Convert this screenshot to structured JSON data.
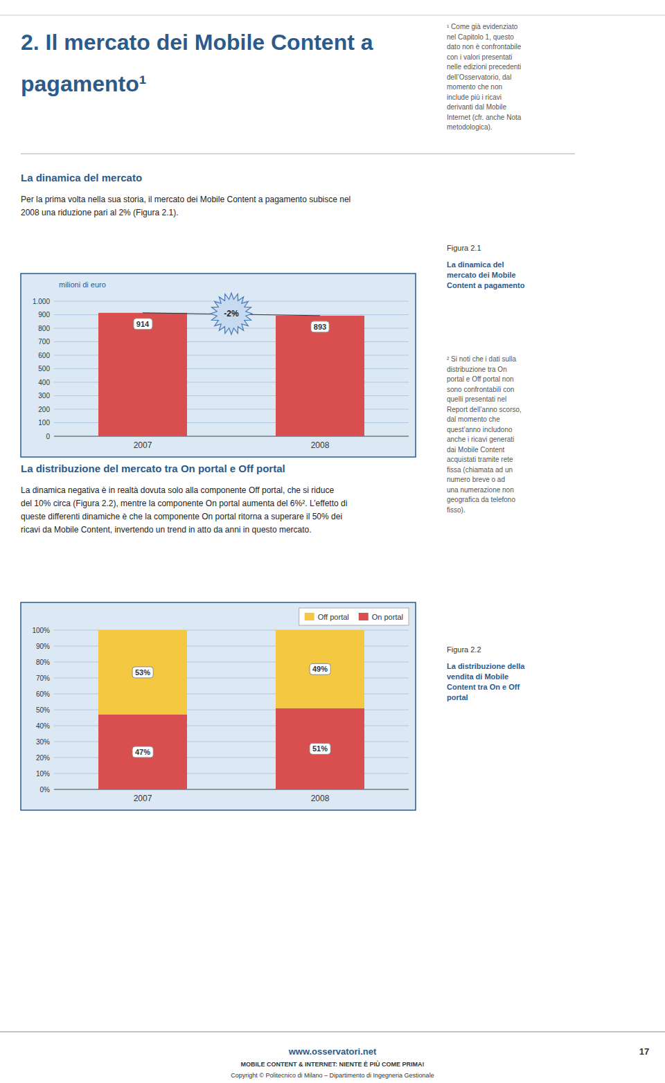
{
  "page": {
    "header": [
      "2. Il mercato dei Mobile Content a",
      "pagamento¹"
    ],
    "footnotes": [
      "¹ Come già evidenziato\nnel Capitolo 1, questo\ndato non è confrontabile\ncon i valori presentati\nnelle edizioni precedenti\ndell’Osservatorio, dal\nmomento che non\ninclude più i ricavi\nderivanti dal Mobile\nInternet (cfr. anche Nota\nmetodologica).",
      "² Si noti che i dati sulla\ndistribuzione tra On\nportal e Off portal non\nsono confrontabili con\nquelli presentati nel\nReport dell’anno scorso,\ndal momento che\nquest’anno includono\nanche i ricavi generati\ndai Mobile Content\nacquistati tramite rete\nfissa (chiamata ad un\nnumero breve o ad\nuna numerazione non\ngeografica da telefono\nfisso)."
    ],
    "sections": [
      {
        "title": "La dinamica del mercato",
        "body": "Per la prima volta nella sua storia, il mercato dei Mobile Content a pagamento subisce nel\n2008 una riduzione pari al 2% (Figura 2.1)."
      },
      {
        "title": "La distribuzione del mercato tra On portal e Off portal",
        "body": "La dinamica negativa è in realtà dovuta solo alla componente Off portal, che si riduce\ndel 10% circa (Figura 2.2), mentre la componente On portal aumenta del 6%². L’effetto di\nqueste differenti dinamiche è che la componente On portal ritorna a superare il 50% dei\nricavi da Mobile Content, invertendo un trend in atto da anni in questo mercato."
      }
    ],
    "footer": {
      "website": "www.osservatori.net",
      "line1": "MOBILE CONTENT & INTERNET: NIENTE È PIÙ COME PRIMA!",
      "line2": "Copyright © Politecnico di Milano – Dipartimento di Ingegneria Gestionale",
      "page": "17"
    }
  },
  "chart_data": [
    {
      "type": "bar",
      "title": "Figura 2.1",
      "subtitle": "La dinamica del\nmercato dei Mobile\nContent a pagamento",
      "ylabel": "milioni di euro",
      "categories": [
        "2007",
        "2008"
      ],
      "values": [
        914,
        893
      ],
      "color": "#d94f4f",
      "ylim": [
        0,
        1000
      ],
      "yticks": [
        0,
        100,
        200,
        300,
        400,
        500,
        600,
        700,
        800,
        900,
        {
          "value": 1000,
          "label": "1.000"
        }
      ],
      "grid": true,
      "data_labels": true,
      "annotations": [
        "-2%"
      ]
    },
    {
      "type": "bar",
      "title": "Figura 2.2",
      "subtitle": "La distribuzione della\nvendita di Mobile\nContent tra On e Off\nportal",
      "categories": [
        "2007",
        "2008"
      ],
      "series": [
        {
          "name": "On portal",
          "color": "#d94f4f",
          "values": [
            47,
            51
          ],
          "value_labels": [
            "47%",
            "51%"
          ]
        },
        {
          "name": "Off portal",
          "color": "#f5c842",
          "values": [
            53,
            49
          ],
          "value_labels": [
            "53%",
            "49%"
          ]
        }
      ],
      "stacked": true,
      "ylim": [
        0,
        100
      ],
      "yticks": [
        {
          "value": 0,
          "label": "0%"
        },
        {
          "value": 10,
          "label": "10%"
        },
        {
          "value": 20,
          "label": "20%"
        },
        {
          "value": 30,
          "label": "30%"
        },
        {
          "value": 40,
          "label": "40%"
        },
        {
          "value": 50,
          "label": "50%"
        },
        {
          "value": 60,
          "label": "60%"
        },
        {
          "value": 70,
          "label": "70%"
        },
        {
          "value": 80,
          "label": "80%"
        },
        {
          "value": 90,
          "label": "90%"
        },
        {
          "value": 100,
          "label": "100%"
        }
      ],
      "grid": true,
      "data_labels": true,
      "legend": "upper right"
    }
  ]
}
